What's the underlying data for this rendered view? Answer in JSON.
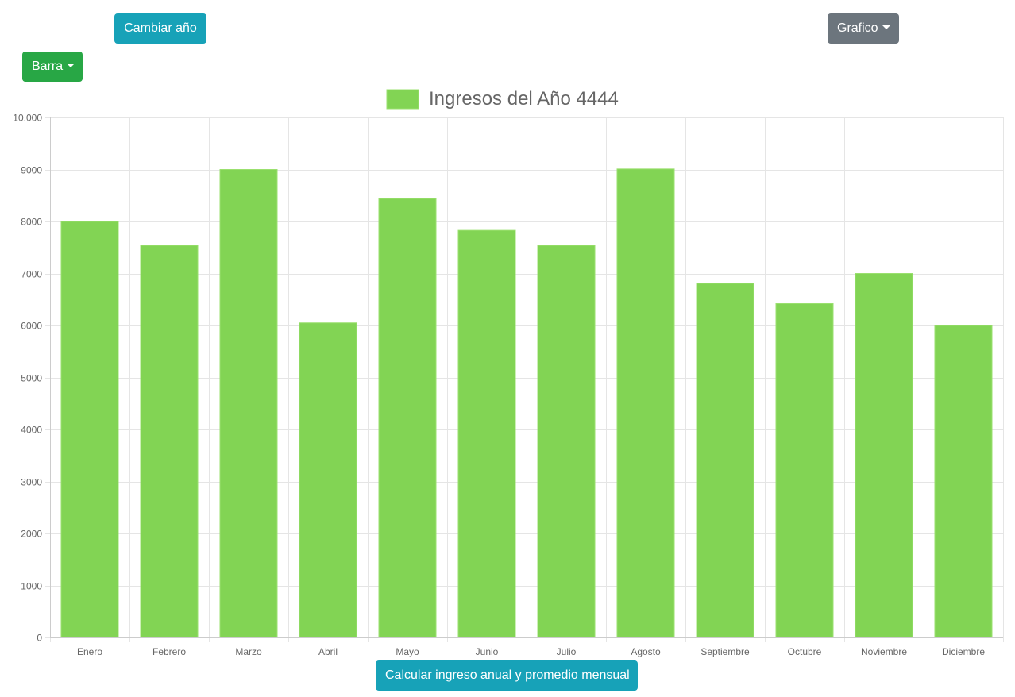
{
  "controls": {
    "change_year_label": "Cambiar año",
    "chart_menu_label": "Grafico",
    "chart_type_label": "Barra",
    "calculate_label": "Calcular ingreso anual y promedio mensual"
  },
  "colors": {
    "bar_fill": "#82d454",
    "bar_border": "#9be06f",
    "grid": "#e5e5e5",
    "text": "#666666"
  },
  "chart_data": {
    "type": "bar",
    "legend_label": "Ingresos del Año 4444",
    "legend_position": "top",
    "grid": true,
    "categories": [
      "Enero",
      "Febrero",
      "Marzo",
      "Abril",
      "Mayo",
      "Junio",
      "Julio",
      "Agosto",
      "Septiembre",
      "Octubre",
      "Noviembre",
      "Diciembre"
    ],
    "values": [
      8000,
      7540,
      9000,
      6050,
      8440,
      7830,
      7540,
      9010,
      6810,
      6420,
      7000,
      6000
    ],
    "ylim": [
      0,
      10000
    ],
    "y_ticks": [
      0,
      1000,
      2000,
      3000,
      4000,
      5000,
      6000,
      7000,
      8000,
      9000,
      10000
    ],
    "y_tick_labels": [
      "0",
      "1000",
      "2000",
      "3000",
      "4000",
      "5000",
      "6000",
      "7000",
      "8000",
      "9000",
      "10.000"
    ]
  }
}
